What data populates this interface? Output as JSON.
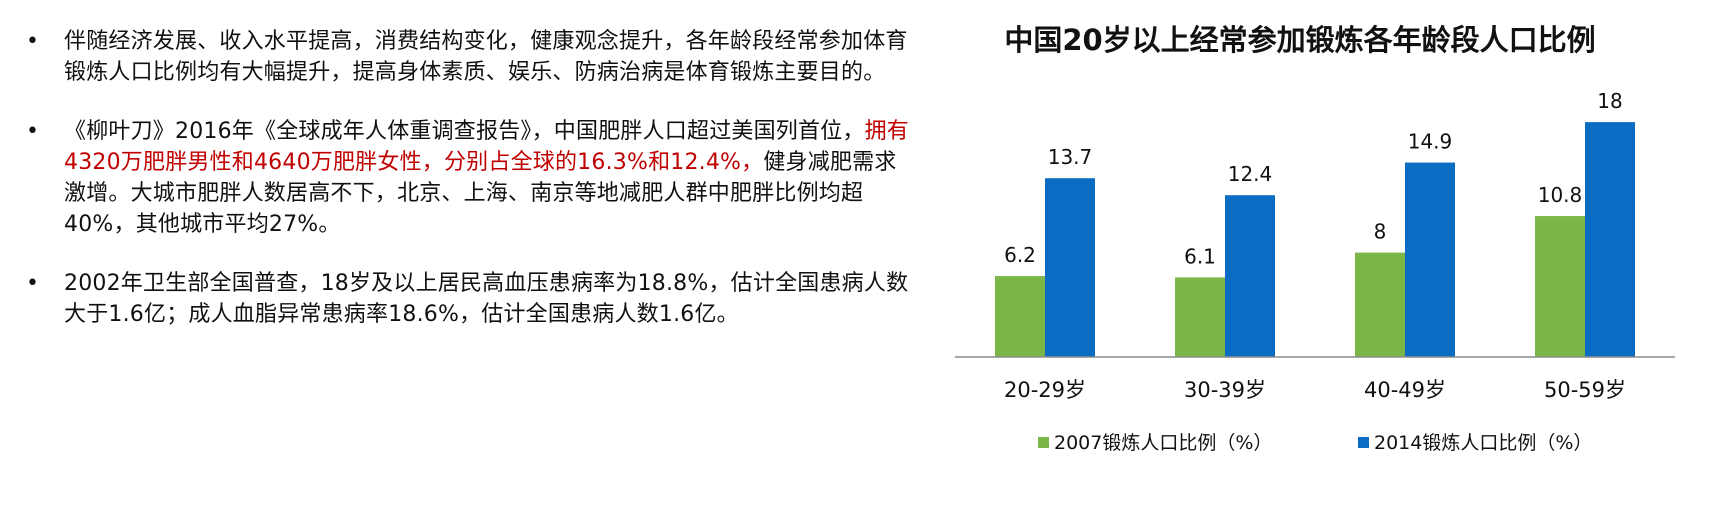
{
  "bullets": [
    {
      "parts": [
        {
          "text": "伴随经济发展、收入水平提高，消费结构变化，健康观念提升，各年龄段经常参加体育锻炼人口比例均有大幅提升，提高身体素质、娱乐、防病治病是体育锻炼主要目的。",
          "highlight": false
        }
      ]
    },
    {
      "parts": [
        {
          "text": "《柳叶刀》2016年《全球成年人体重调查报告》，中国肥胖人口超过美国列首位，",
          "highlight": false
        },
        {
          "text": "拥有4320万肥胖男性和4640万肥胖女性，分别占全球的16.3%和12.4%，",
          "highlight": true
        },
        {
          "text": "健身减肥需求激增。大城市肥胖人数居高不下，北京、上海、南京等地减肥人群中肥胖比例均超40%，其他城市平均27%。",
          "highlight": false
        }
      ]
    },
    {
      "parts": [
        {
          "text": "2002年卫生部全国普查，18岁及以上居民高血压患病率为18.8%，估计全国患病人数大于1.6亿；成人血脂异常患病率18.6%，估计全国患病人数1.6亿。",
          "highlight": false
        }
      ]
    }
  ],
  "bullet_symbol": "•",
  "colors": {
    "highlight": "#c00000",
    "series_2007": "#7ab648",
    "series_2014": "#0b6cc4",
    "axis": "#8c8c8c"
  },
  "chart_data": {
    "type": "bar",
    "title": "中国20岁以上经常参加锻炼各年龄段人口比例",
    "categories": [
      "20-29岁",
      "30-39岁",
      "40-49岁",
      "50-59岁"
    ],
    "series": [
      {
        "name": "2007锻炼人口比例（%）",
        "values": [
          6.2,
          6.1,
          8,
          10.8
        ],
        "labels": [
          "6.2",
          "6.1",
          "8",
          "10.8"
        ]
      },
      {
        "name": "2014锻炼人口比例（%）",
        "values": [
          13.7,
          12.4,
          14.9,
          18
        ],
        "labels": [
          "13.7",
          "12.4",
          "14.9",
          "18"
        ]
      }
    ],
    "ylim": [
      0,
      20
    ],
    "grid": false,
    "legend": "bottom"
  }
}
